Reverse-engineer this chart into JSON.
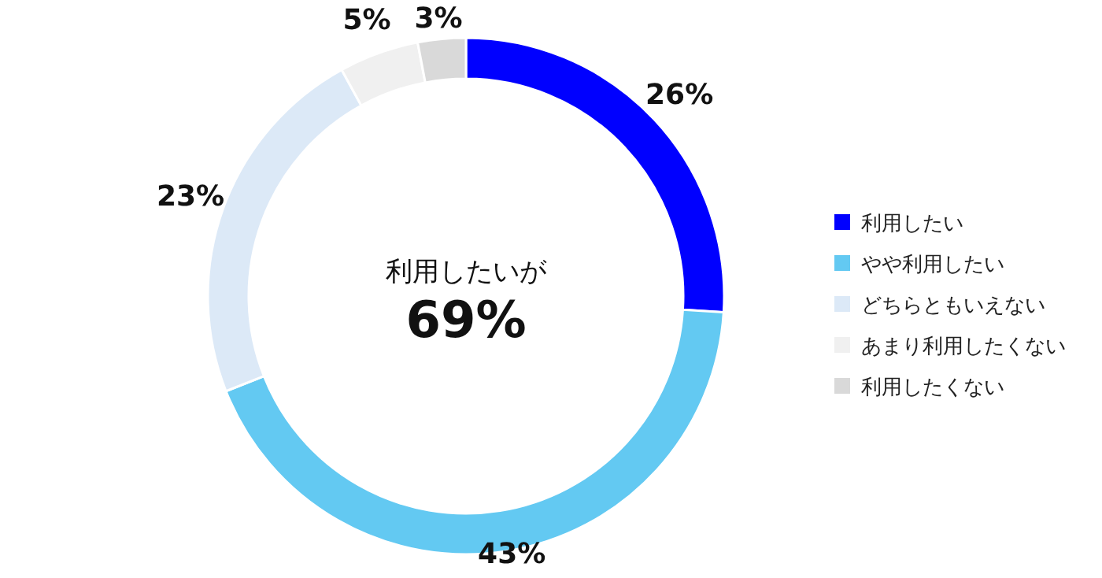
{
  "chart_data": {
    "type": "donut",
    "categories": [
      "利用したい",
      "やや利用したい",
      "どちらともいえない",
      "あまり利用したくない",
      "利用したくない"
    ],
    "values": [
      26,
      43,
      23,
      5,
      3
    ],
    "value_labels": [
      "26%",
      "43%",
      "23%",
      "5%",
      "3%"
    ],
    "colors": [
      "#0000ff",
      "#63c9f2",
      "#dce9f7",
      "#f0f0f0",
      "#d9d9d9"
    ],
    "legend": "right",
    "annotations": [
      "利用したいが",
      "69%"
    ]
  }
}
